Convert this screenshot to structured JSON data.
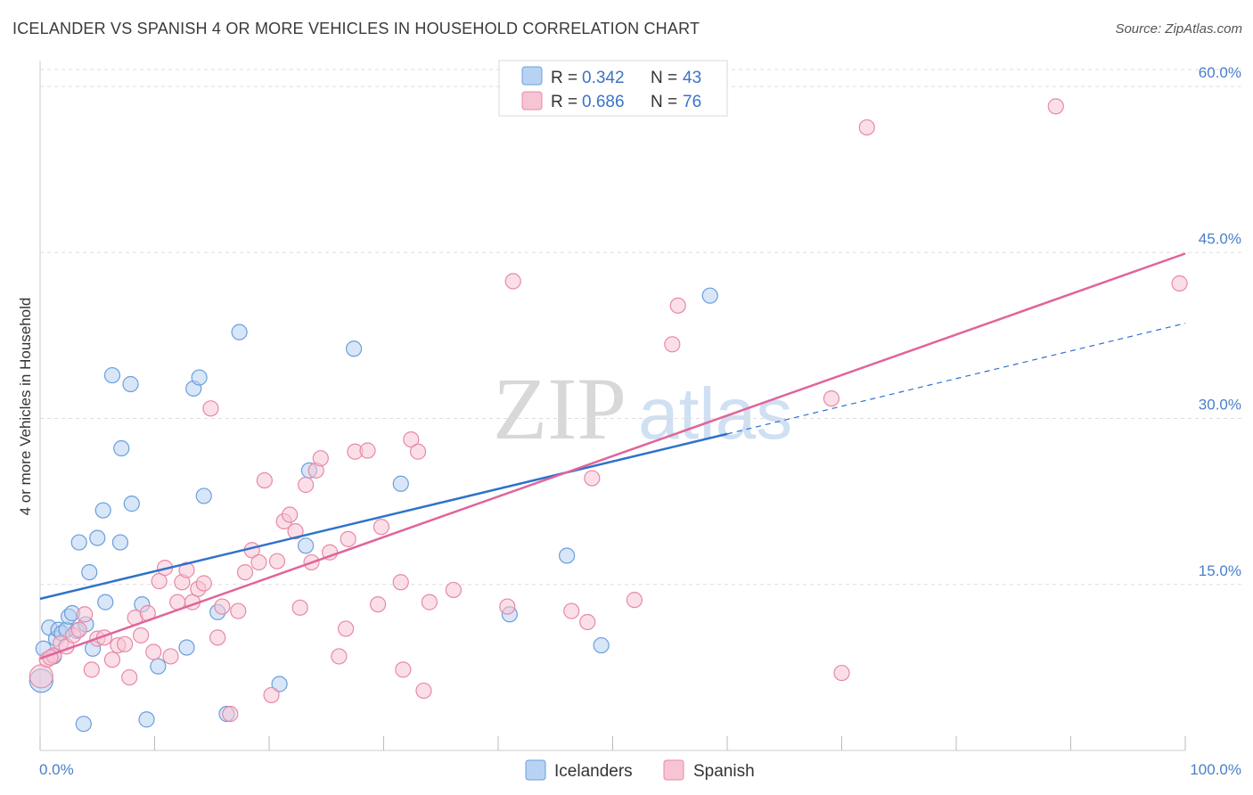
{
  "title": "ICELANDER VS SPANISH 4 OR MORE VEHICLES IN HOUSEHOLD CORRELATION CHART",
  "source": "Source: ZipAtlas.com",
  "watermark": {
    "zip": "ZIP",
    "atlas": "atlas"
  },
  "colors": {
    "icelanders_fill": "#b8d2f3",
    "icelanders_stroke": "#6a9fdc",
    "icelanders_line": "#2f72cc",
    "spanish_fill": "#f7c4d3",
    "spanish_stroke": "#e888a8",
    "spanish_line": "#e0649a",
    "tick_label": "#4a7fc8",
    "grid": "#dddddd"
  },
  "legend": {
    "rows": [
      {
        "r_label": "R = ",
        "r_value": "0.342",
        "n_label": "N = ",
        "n_value": "43"
      },
      {
        "r_label": "R = ",
        "r_value": "0.686",
        "n_label": "N = ",
        "n_value": "76"
      }
    ]
  },
  "chart_data": {
    "type": "scatter",
    "title": "ICELANDER VS SPANISH 4 OR MORE VEHICLES IN HOUSEHOLD CORRELATION CHART",
    "xlabel": "",
    "ylabel": "4 or more Vehicles in Household",
    "xlim": [
      0,
      100
    ],
    "ylim": [
      0,
      63
    ],
    "x_tick_labels": [
      "0.0%",
      "100.0%"
    ],
    "y_ticks": [
      15,
      30,
      45,
      60
    ],
    "y_tick_labels": [
      "15.0%",
      "30.0%",
      "45.0%",
      "60.0%"
    ],
    "grid": "horizontal dashed",
    "legend_position": "top-center",
    "series": [
      {
        "name": "Icelanders",
        "r": 0.342,
        "n": 43,
        "trend": {
          "x0": 0,
          "y0": 13.7,
          "x1": 60,
          "y1": 28.6,
          "dashed_to_x": 100,
          "dashed_to_y": 38.6
        },
        "points": [
          [
            0.3,
            9.2
          ],
          [
            0.8,
            11.1
          ],
          [
            1.2,
            8.5
          ],
          [
            1.4,
            10.1
          ],
          [
            1.6,
            10.9
          ],
          [
            1.9,
            10.6
          ],
          [
            2.3,
            10.9
          ],
          [
            2.5,
            12.1
          ],
          [
            2.8,
            12.4
          ],
          [
            3.2,
            10.8
          ],
          [
            3.4,
            18.8
          ],
          [
            3.8,
            2.4
          ],
          [
            4.0,
            11.4
          ],
          [
            4.3,
            16.1
          ],
          [
            4.6,
            9.2
          ],
          [
            5.0,
            19.2
          ],
          [
            5.5,
            21.7
          ],
          [
            5.7,
            13.4
          ],
          [
            6.3,
            33.9
          ],
          [
            7.0,
            18.8
          ],
          [
            7.1,
            27.3
          ],
          [
            7.9,
            33.1
          ],
          [
            8.0,
            22.3
          ],
          [
            8.9,
            13.2
          ],
          [
            9.3,
            2.8
          ],
          [
            10.3,
            7.6
          ],
          [
            12.8,
            9.3
          ],
          [
            13.4,
            32.7
          ],
          [
            13.9,
            33.7
          ],
          [
            14.3,
            23.0
          ],
          [
            15.5,
            12.5
          ],
          [
            16.3,
            3.3
          ],
          [
            17.4,
            37.8
          ],
          [
            20.9,
            6.0
          ],
          [
            23.2,
            18.5
          ],
          [
            23.5,
            25.3
          ],
          [
            27.4,
            36.3
          ],
          [
            31.5,
            24.1
          ],
          [
            41.0,
            12.3
          ],
          [
            46.0,
            17.6
          ],
          [
            49.0,
            9.5
          ],
          [
            58.5,
            41.1
          ],
          [
            0.1,
            6.3
          ]
        ]
      },
      {
        "name": "Spanish",
        "r": 0.686,
        "n": 76,
        "trend": {
          "x0": 0,
          "y0": 8.3,
          "x1": 100,
          "y1": 44.9
        },
        "points": [
          [
            0.1,
            6.7
          ],
          [
            0.6,
            8.2
          ],
          [
            1.2,
            8.6
          ],
          [
            1.8,
            9.7
          ],
          [
            2.3,
            9.4
          ],
          [
            2.9,
            10.4
          ],
          [
            3.4,
            10.9
          ],
          [
            3.9,
            12.3
          ],
          [
            4.5,
            7.3
          ],
          [
            5.0,
            10.1
          ],
          [
            5.6,
            10.2
          ],
          [
            6.3,
            8.2
          ],
          [
            6.8,
            9.5
          ],
          [
            7.4,
            9.6
          ],
          [
            7.8,
            6.6
          ],
          [
            8.3,
            12.0
          ],
          [
            8.8,
            10.4
          ],
          [
            9.4,
            12.4
          ],
          [
            9.9,
            8.9
          ],
          [
            10.4,
            15.3
          ],
          [
            10.9,
            16.5
          ],
          [
            11.4,
            8.5
          ],
          [
            12.0,
            13.4
          ],
          [
            12.4,
            15.2
          ],
          [
            12.8,
            16.3
          ],
          [
            13.3,
            13.4
          ],
          [
            13.8,
            14.6
          ],
          [
            14.3,
            15.1
          ],
          [
            14.9,
            30.9
          ],
          [
            15.5,
            10.2
          ],
          [
            15.9,
            13.0
          ],
          [
            16.6,
            3.3
          ],
          [
            17.3,
            12.6
          ],
          [
            17.9,
            16.1
          ],
          [
            18.5,
            18.1
          ],
          [
            19.1,
            17.0
          ],
          [
            19.6,
            24.4
          ],
          [
            20.2,
            5.0
          ],
          [
            20.7,
            17.1
          ],
          [
            21.3,
            20.7
          ],
          [
            21.8,
            21.3
          ],
          [
            22.3,
            19.8
          ],
          [
            22.7,
            12.9
          ],
          [
            23.2,
            24.0
          ],
          [
            23.7,
            17.0
          ],
          [
            24.1,
            25.3
          ],
          [
            24.5,
            26.4
          ],
          [
            25.3,
            17.9
          ],
          [
            26.1,
            8.5
          ],
          [
            26.7,
            11.0
          ],
          [
            26.9,
            19.1
          ],
          [
            27.5,
            27.0
          ],
          [
            28.6,
            27.1
          ],
          [
            29.5,
            13.2
          ],
          [
            29.8,
            20.2
          ],
          [
            31.5,
            15.2
          ],
          [
            31.7,
            7.3
          ],
          [
            32.4,
            28.1
          ],
          [
            33.0,
            27.0
          ],
          [
            33.5,
            5.4
          ],
          [
            34.0,
            13.4
          ],
          [
            36.1,
            14.5
          ],
          [
            40.8,
            13.0
          ],
          [
            41.3,
            42.4
          ],
          [
            46.4,
            12.6
          ],
          [
            47.8,
            11.6
          ],
          [
            48.2,
            24.6
          ],
          [
            51.9,
            13.6
          ],
          [
            55.2,
            36.7
          ],
          [
            55.7,
            40.2
          ],
          [
            69.1,
            31.8
          ],
          [
            70.0,
            7.0
          ],
          [
            72.2,
            56.3
          ],
          [
            88.7,
            58.2
          ],
          [
            99.5,
            42.2
          ],
          [
            0.9,
            8.4
          ]
        ]
      }
    ]
  }
}
